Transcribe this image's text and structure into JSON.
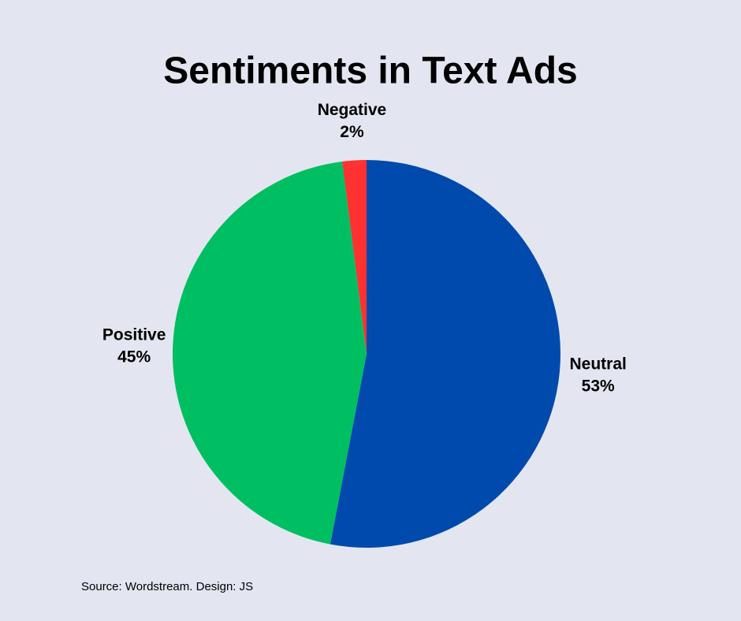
{
  "chart_data": {
    "type": "pie",
    "title": "Sentiments in Text Ads",
    "categories": [
      "Neutral",
      "Positive",
      "Negative"
    ],
    "values": [
      53,
      45,
      2
    ],
    "value_labels": [
      "53%",
      "45%",
      "2%"
    ],
    "colors": [
      "#004aad",
      "#00bf63",
      "#ff3131"
    ],
    "source": "Source: Wordstream. Design: JS"
  }
}
